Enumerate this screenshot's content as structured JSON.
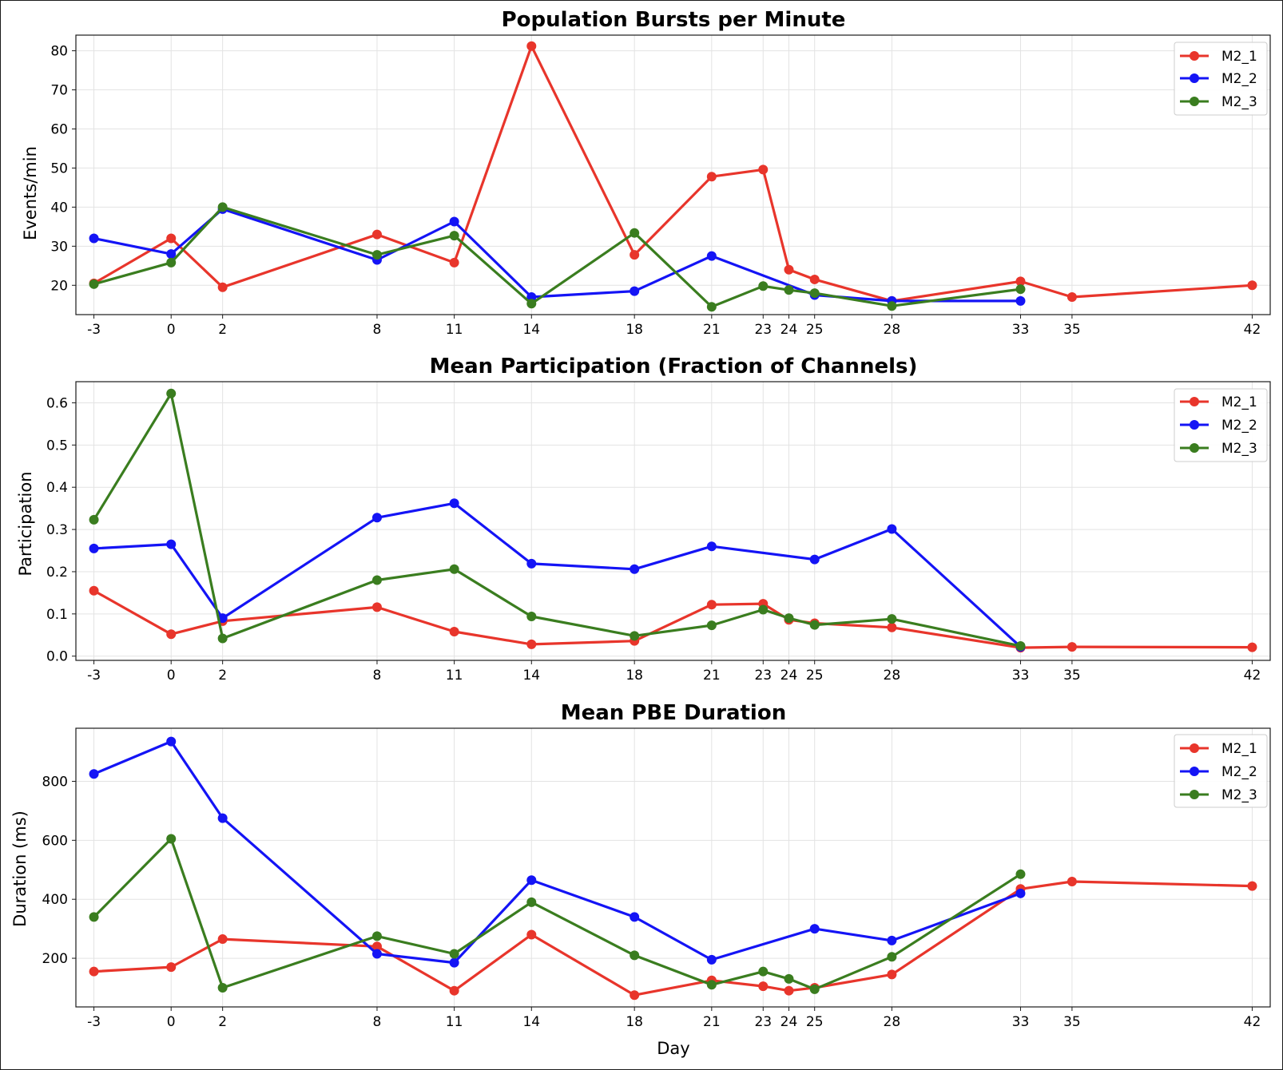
{
  "chart_data": [
    {
      "type": "line",
      "title": "Population Bursts per Minute",
      "xlabel": "",
      "ylabel": "Events/min",
      "xticks": [
        -3,
        0,
        2,
        8,
        11,
        14,
        18,
        21,
        23,
        24,
        25,
        28,
        33,
        35,
        42
      ],
      "xlim": [
        -3.7,
        42.7
      ],
      "ylim": [
        12.5,
        84
      ],
      "yticks": [
        20,
        30,
        40,
        50,
        60,
        70,
        80
      ],
      "grid": true,
      "legend": "top-right",
      "series": [
        {
          "name": "M2_1",
          "color": "#e8352b",
          "x": [
            -3,
            0,
            2,
            8,
            11,
            14,
            18,
            21,
            23,
            24,
            25,
            28,
            33,
            35,
            42
          ],
          "y": [
            20.5,
            32,
            19.5,
            33,
            25.8,
            81.2,
            27.8,
            47.8,
            49.6,
            24,
            21.5,
            16,
            21,
            17,
            20
          ]
        },
        {
          "name": "M2_2",
          "color": "#1414f5",
          "x": [
            -3,
            0,
            2,
            8,
            11,
            14,
            18,
            21,
            25,
            28,
            33
          ],
          "y": [
            32,
            28,
            39.5,
            26.5,
            36.3,
            17,
            18.5,
            27.5,
            17.5,
            16,
            16
          ]
        },
        {
          "name": "M2_3",
          "color": "#3a7d1f",
          "x": [
            -3,
            0,
            2,
            8,
            11,
            14,
            18,
            21,
            23,
            24,
            25,
            28,
            33
          ],
          "y": [
            20.3,
            25.8,
            40,
            27.8,
            32.7,
            15.3,
            33.4,
            14.5,
            19.8,
            18.8,
            18,
            14.7,
            19
          ]
        }
      ]
    },
    {
      "type": "line",
      "title": "Mean Participation (Fraction of Channels)",
      "xlabel": "",
      "ylabel": "Participation",
      "xticks": [
        -3,
        0,
        2,
        8,
        11,
        14,
        18,
        21,
        23,
        24,
        25,
        28,
        33,
        35,
        42
      ],
      "xlim": [
        -3.7,
        42.7
      ],
      "ylim": [
        -0.01,
        0.65
      ],
      "yticks": [
        0.0,
        0.1,
        0.2,
        0.3,
        0.4,
        0.5,
        0.6
      ],
      "ytick_labels": [
        "0.0",
        "0.1",
        "0.2",
        "0.3",
        "0.4",
        "0.5",
        "0.6"
      ],
      "grid": true,
      "legend": "top-right",
      "series": [
        {
          "name": "M2_1",
          "color": "#e8352b",
          "x": [
            -3,
            0,
            2,
            8,
            11,
            14,
            18,
            21,
            23,
            24,
            25,
            28,
            33,
            35,
            42
          ],
          "y": [
            0.155,
            0.052,
            0.083,
            0.116,
            0.058,
            0.028,
            0.036,
            0.122,
            0.124,
            0.086,
            0.078,
            0.068,
            0.02,
            0.022,
            0.021
          ]
        },
        {
          "name": "M2_2",
          "color": "#1414f5",
          "x": [
            -3,
            0,
            2,
            8,
            11,
            14,
            18,
            21,
            25,
            28,
            33
          ],
          "y": [
            0.255,
            0.265,
            0.09,
            0.328,
            0.362,
            0.219,
            0.206,
            0.26,
            0.229,
            0.301,
            0.022
          ]
        },
        {
          "name": "M2_3",
          "color": "#3a7d1f",
          "x": [
            -3,
            0,
            2,
            8,
            11,
            14,
            18,
            21,
            23,
            24,
            25,
            28,
            33
          ],
          "y": [
            0.323,
            0.622,
            0.042,
            0.18,
            0.206,
            0.094,
            0.048,
            0.073,
            0.11,
            0.09,
            0.074,
            0.088,
            0.024
          ]
        }
      ]
    },
    {
      "type": "line",
      "title": "Mean PBE Duration",
      "xlabel": "Day",
      "ylabel": "Duration (ms)",
      "xticks": [
        -3,
        0,
        2,
        8,
        11,
        14,
        18,
        21,
        23,
        24,
        25,
        28,
        33,
        35,
        42
      ],
      "xlim": [
        -3.7,
        42.7
      ],
      "ylim": [
        35,
        980
      ],
      "yticks": [
        200,
        400,
        600,
        800
      ],
      "grid": true,
      "legend": "top-right",
      "series": [
        {
          "name": "M2_1",
          "color": "#e8352b",
          "x": [
            -3,
            0,
            2,
            8,
            11,
            14,
            18,
            21,
            23,
            24,
            25,
            28,
            33,
            35,
            42
          ],
          "y": [
            155,
            170,
            265,
            240,
            90,
            280,
            75,
            125,
            105,
            90,
            100,
            145,
            435,
            460,
            445
          ]
        },
        {
          "name": "M2_2",
          "color": "#1414f5",
          "x": [
            -3,
            0,
            2,
            8,
            11,
            14,
            18,
            21,
            25,
            28,
            33
          ],
          "y": [
            825,
            935,
            675,
            215,
            185,
            465,
            340,
            195,
            300,
            260,
            420
          ]
        },
        {
          "name": "M2_3",
          "color": "#3a7d1f",
          "x": [
            -3,
            0,
            2,
            8,
            11,
            14,
            18,
            21,
            23,
            24,
            25,
            28,
            33
          ],
          "y": [
            340,
            605,
            100,
            275,
            215,
            390,
            210,
            110,
            155,
            130,
            95,
            205,
            485
          ]
        }
      ]
    }
  ]
}
